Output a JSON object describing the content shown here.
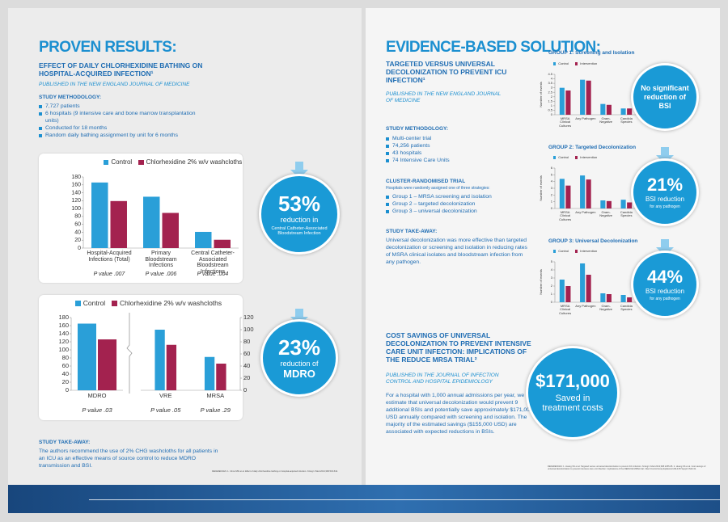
{
  "left": {
    "title": "PROVEN RESULTS:",
    "subtitle": "EFFECT OF DAILY CHLORHEXIDINE BATHING ON HOSPITAL-ACQUIRED INFECTION¹",
    "source": "PUBLISHED IN THE NEW ENGLAND JOURNAL OF MEDICINE",
    "methodology": {
      "heading": "STUDY METHODOLOGY:",
      "items": [
        "7,727 patients",
        "6 hospitals (9 intensive care and bone marrow transplantation units)",
        "Conducted for 18 months",
        "Random daily bathing assignment by unit for 6 months"
      ]
    },
    "callouts": [
      {
        "value": "53%",
        "lines": [
          "reduction in",
          "Central Catheter-Associated Bloodstream Infection"
        ]
      },
      {
        "value": "23%",
        "lines": [
          "reduction of",
          "MDRO"
        ]
      }
    ],
    "takeaway": {
      "heading": "STUDY TAKE-AWAY:",
      "text": "The authors recommend the use of 2% CHG washcloths for all patients in an ICU as an effective means of source control to reduce MDRO transmission and BSI."
    },
    "references": "REFERENCES: 1. Climo MW et al. Effect of daily chlorhexidine bathing on hospital-acquired infection. N Engl J Med 2013;368:533-542."
  },
  "right": {
    "title": "EVIDENCE-BASED SOLUTION:",
    "subtitle": "TARGETED VERSUS UNIVERSAL DECOLONIZATION TO PREVENT ICU INFECTION¹",
    "source": "PUBLISHED IN THE NEW ENGLAND JOURNAL OF MEDICINE",
    "methodology": {
      "heading": "STUDY METHODOLOGY:",
      "items": [
        "Multi-center trial",
        "74,256 patients",
        "43 hospitals",
        "74 Intensive Care Units"
      ]
    },
    "trial": {
      "heading": "CLUSTER-RANDOMISED TRIAL",
      "note": "Hospitals were randomly assigned one of three strategies:",
      "items": [
        "Group 1 – MRSA screening and isolation",
        "Group 2 – targeted decolonization",
        "Group 3 – universal decolonization"
      ]
    },
    "takeaway": {
      "heading": "STUDY TAKE-AWAY:",
      "text": "Universal decolonization was more effective than targeted decolonization or screening and isolation in reducing rates of MSRA clinical isolates and bloodstream infection from any pathogen."
    },
    "callouts": [
      {
        "lines": [
          "No significant",
          "reduction of",
          "BSI"
        ]
      },
      {
        "value": "21%",
        "lines": [
          "BSI reduction",
          "for any pathogen"
        ]
      },
      {
        "value": "44%",
        "lines": [
          "BSI reduction",
          "for any pathogen"
        ]
      }
    ],
    "cost": {
      "heading": "COST SAVINGS OF UNIVERSAL DECOLONIZATION TO PREVENT INTENSIVE CARE UNIT INFECTION: IMPLICATIONS OF THE REDUCE MRSA TRIAL²",
      "source": "PUBLISHED IN THE JOURNAL OF INFECTION CONTROL AND HOSPITAL EPIDEMIOLOGY",
      "text": "For a hospital with 1,000 annual admissions per year, we estimate that universal decolonization would prevent 9 additional BSIs and potentially save approximately $171,000 USD annually compared with screening and isolation. The majority of the estimated savings ($155,000 USD) are associated with expected reductions in BSIs.",
      "callout": {
        "value": "$171,000",
        "lines": [
          "Saved in",
          "treatment costs"
        ]
      }
    },
    "references": "REFERENCES: 1. Huang SS et al. Targeted versus universal decolonization to prevent ICU infection. N Engl J Med 2013;368:2255-65. 2. Huang SS et al. Cost savings of universal decolonization to prevent intensive care unit infection: implications of the REDUCE MRSA trial. Infect Control Hosp Epidemiol 2014;35 Suppl 3:S23-31."
  },
  "chart_data": [
    {
      "type": "bar",
      "categories": [
        "Hospital-Acquired Infections (Total)",
        "Primary Bloodstream Infections",
        "Central Catheter-Associated Bloodstream Infections"
      ],
      "series": [
        {
          "name": "Control",
          "color": "#2a9fd8",
          "values": [
            166,
            130,
            41
          ]
        },
        {
          "name": "Chlorhexidine 2% w/v washcloths",
          "color": "#a3224f",
          "values": [
            119,
            89,
            21
          ]
        }
      ],
      "annotations": [
        "P value .007",
        "P value .006",
        "P value .004"
      ],
      "ylim": [
        0,
        180
      ],
      "yticks": [
        0,
        20,
        40,
        60,
        80,
        100,
        120,
        140,
        160,
        180
      ]
    },
    {
      "type": "bar",
      "categories": [
        "MDRO"
      ],
      "series": [
        {
          "name": "Control",
          "color": "#2a9fd8",
          "values": [
            165
          ]
        },
        {
          "name": "Chlorhexidine 2% w/v washcloths",
          "color": "#a3224f",
          "values": [
            126
          ]
        }
      ],
      "annotations": [
        "P value .03"
      ],
      "ylim": [
        0,
        180
      ],
      "yticks": [
        0,
        20,
        40,
        60,
        80,
        100,
        120,
        140,
        160,
        180
      ]
    },
    {
      "type": "bar",
      "categories": [
        "VRE",
        "MRSA"
      ],
      "series": [
        {
          "color": "#2a9fd8",
          "values": [
            100,
            55
          ]
        },
        {
          "color": "#a3224f",
          "values": [
            75,
            44
          ]
        }
      ],
      "annotations": [
        "P value .05",
        "P value .29"
      ],
      "yaxis": "right",
      "ylim": [
        0,
        120
      ],
      "yticks": [
        0,
        20,
        40,
        60,
        80,
        100,
        120
      ]
    },
    {
      "type": "bar",
      "title": "GROUP 1: Screening and Isolation",
      "ylabel": "Number of events",
      "categories": [
        "MRSA Clinical Cultures",
        "Any Pathogen",
        "Gram-Negative",
        "Candida Species"
      ],
      "series": [
        {
          "name": "Control",
          "color": "#2a9fd8",
          "values": [
            3.0,
            3.9,
            1.2,
            0.7
          ]
        },
        {
          "name": "Intervention",
          "color": "#a3224f",
          "values": [
            2.7,
            3.8,
            1.1,
            0.7
          ]
        }
      ],
      "ylim": [
        0,
        4.5
      ],
      "yticks": [
        0,
        0.5,
        1,
        1.5,
        2,
        2.5,
        3,
        3.5,
        4,
        4.5
      ]
    },
    {
      "type": "bar",
      "title": "GROUP 2: Targeted Decolonization",
      "ylabel": "Number of events",
      "categories": [
        "MRSA Clinical Cultures",
        "Any Pathogen",
        "Gram-Negative",
        "Candida Species"
      ],
      "series": [
        {
          "name": "Control",
          "color": "#2a9fd8",
          "values": [
            4.4,
            4.9,
            1.2,
            1.3
          ]
        },
        {
          "name": "Intervention",
          "color": "#a3224f",
          "values": [
            3.4,
            4.3,
            1.1,
            0.9
          ]
        }
      ],
      "ylim": [
        0,
        6
      ],
      "yticks": [
        0,
        1,
        2,
        3,
        4,
        5,
        6
      ]
    },
    {
      "type": "bar",
      "title": "GROUP 3: Universal Decolonization",
      "ylabel": "Number of events",
      "categories": [
        "MRSA Clinical Cultures",
        "Any Pathogen",
        "Gram-Negative",
        "Candida Species"
      ],
      "series": [
        {
          "name": "Control",
          "color": "#2a9fd8",
          "values": [
            2.8,
            4.8,
            1.1,
            0.9
          ]
        },
        {
          "name": "Intervention",
          "color": "#a3224f",
          "values": [
            2.0,
            3.4,
            1.0,
            0.6
          ]
        }
      ],
      "ylim": [
        0,
        5
      ],
      "yticks": [
        0,
        1,
        2,
        3,
        4,
        5
      ]
    }
  ]
}
